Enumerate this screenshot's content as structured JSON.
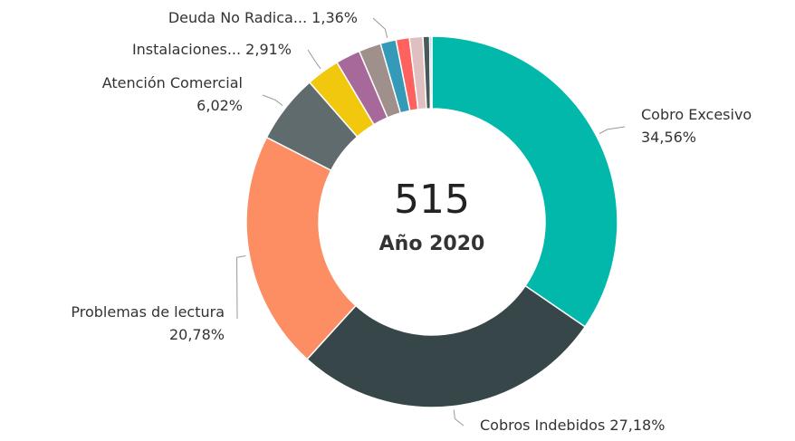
{
  "chart_data": {
    "type": "donut",
    "center_value": "515",
    "center_label": "Año 2020",
    "categories": [
      "Cobro Excesivo",
      "Cobros Indebidos",
      "Problemas de lectura",
      "Atención Comercial",
      "Instalaciones...",
      null,
      null,
      "Deuda No Radica...",
      null,
      null,
      null,
      null
    ],
    "values": [
      34.56,
      27.18,
      20.78,
      6.02,
      2.91,
      2.14,
      1.94,
      1.36,
      1.17,
      1.17,
      0.58,
      0.19
    ],
    "value_labels": [
      "34,56%",
      "27,18%",
      "20,78%",
      "6,02%",
      "2,91%",
      null,
      null,
      "1,36%",
      null,
      null,
      null,
      null
    ],
    "colors": [
      "#01b8aa",
      "#374649",
      "#fd8d62",
      "#5f6b6d",
      "#f2c80f",
      "#a66999",
      "#a0908b",
      "#3599b8",
      "#fd625e",
      "#dfbfbf",
      "#4a5859",
      "#8ad4eb"
    ]
  }
}
